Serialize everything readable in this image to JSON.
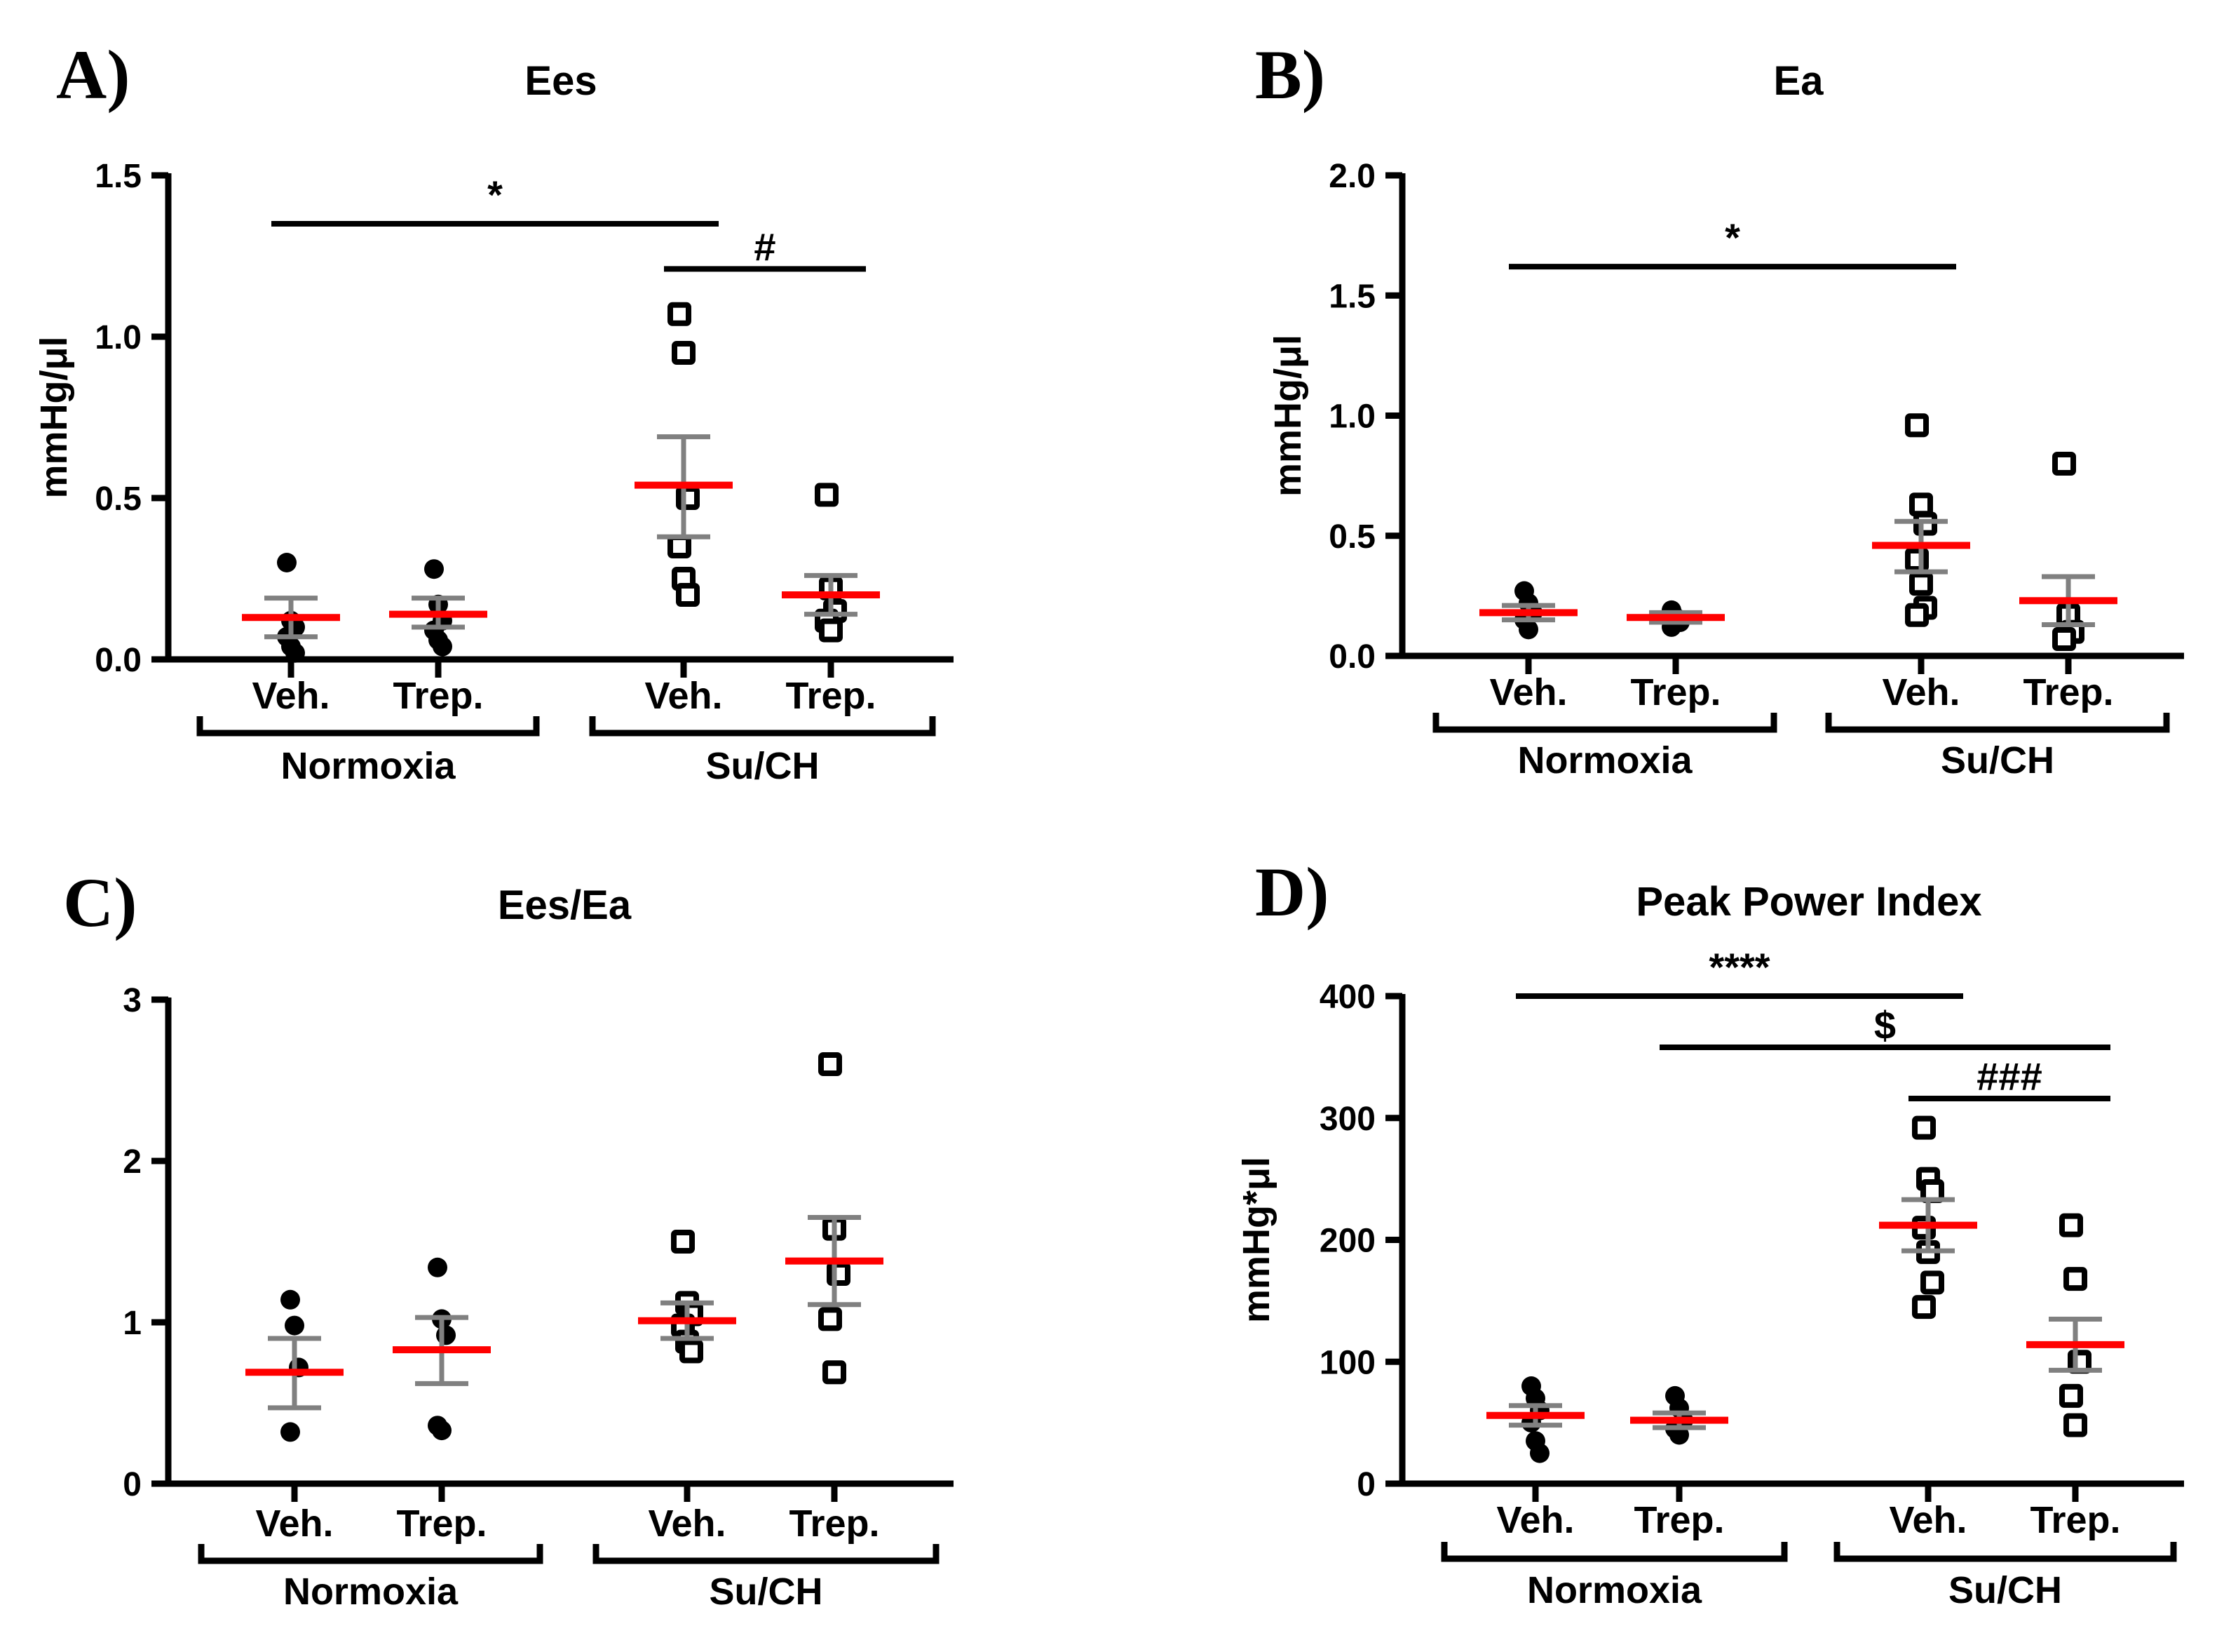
{
  "figure": {
    "groups": [
      "Normoxia",
      "Su/CH"
    ],
    "conditions": [
      "Veh.",
      "Trep.",
      "Veh.",
      "Trep."
    ]
  },
  "chart_data": [
    {
      "panel_label": "A)",
      "type": "scatter",
      "title": "Ees",
      "ylabel": "mmHg/μl",
      "ylim": [
        0,
        1.5
      ],
      "yticks": [
        "0.0",
        "0.5",
        "1.0",
        "1.5"
      ],
      "ytick_values": [
        0,
        0.5,
        1.0,
        1.5
      ],
      "categories": [
        "Veh.",
        "Trep.",
        "Veh.",
        "Trep."
      ],
      "groups": [
        "Normoxia",
        "Su/CH"
      ],
      "series": [
        {
          "name": "Normoxia Veh.",
          "marker": "filled-circle",
          "points": [
            0.3,
            0.12,
            0.1,
            0.07,
            0.04,
            0.02
          ],
          "mean": 0.13,
          "sem": [
            0.07,
            0.19
          ]
        },
        {
          "name": "Normoxia Trep.",
          "marker": "filled-circle",
          "points": [
            0.28,
            0.17,
            0.12,
            0.09,
            0.06,
            0.04
          ],
          "mean": 0.14,
          "sem": [
            0.1,
            0.19
          ]
        },
        {
          "name": "Su/CH Veh.",
          "marker": "open-square",
          "points": [
            1.07,
            0.95,
            0.5,
            0.35,
            0.25,
            0.2
          ],
          "mean": 0.54,
          "sem": [
            0.38,
            0.69
          ]
        },
        {
          "name": "Su/CH Trep.",
          "marker": "open-square",
          "points": [
            0.51,
            0.22,
            0.15,
            0.12,
            0.09
          ],
          "mean": 0.2,
          "sem": [
            0.14,
            0.26
          ]
        }
      ],
      "significance": [
        {
          "label": "*",
          "from": 0,
          "to": 2,
          "y": 1.35
        },
        {
          "label": "#",
          "from": 2,
          "to": 3,
          "y": 1.21
        }
      ]
    },
    {
      "panel_label": "B)",
      "type": "scatter",
      "title": "Ea",
      "ylabel": "mmHg/μl",
      "ylim": [
        0,
        2.0
      ],
      "yticks": [
        "0.0",
        "0.5",
        "1.0",
        "1.5",
        "2.0"
      ],
      "ytick_values": [
        0,
        0.5,
        1.0,
        1.5,
        2.0
      ],
      "categories": [
        "Veh.",
        "Trep.",
        "Veh.",
        "Trep."
      ],
      "groups": [
        "Normoxia",
        "Su/CH"
      ],
      "series": [
        {
          "name": "Normoxia Veh.",
          "marker": "filled-circle",
          "points": [
            0.27,
            0.22,
            0.18,
            0.15,
            0.11
          ],
          "mean": 0.18,
          "sem": [
            0.15,
            0.21
          ]
        },
        {
          "name": "Normoxia Trep.",
          "marker": "filled-circle",
          "points": [
            0.19,
            0.16,
            0.14,
            0.12
          ],
          "mean": 0.16,
          "sem": [
            0.14,
            0.18
          ]
        },
        {
          "name": "Su/CH Veh.",
          "marker": "open-square",
          "points": [
            0.96,
            0.63,
            0.55,
            0.4,
            0.3,
            0.2,
            0.17
          ],
          "mean": 0.46,
          "sem": [
            0.35,
            0.56
          ]
        },
        {
          "name": "Su/CH Trep.",
          "marker": "open-square",
          "points": [
            0.8,
            0.17,
            0.1,
            0.07
          ],
          "mean": 0.23,
          "sem": [
            0.13,
            0.33
          ]
        }
      ],
      "significance": [
        {
          "label": "*",
          "from": 0,
          "to": 2,
          "y": 1.62
        }
      ]
    },
    {
      "panel_label": "C)",
      "type": "scatter",
      "title": "Ees/Ea",
      "ylabel": "",
      "ylim": [
        0,
        3
      ],
      "yticks": [
        "0",
        "1",
        "2",
        "3"
      ],
      "ytick_values": [
        0,
        1,
        2,
        3
      ],
      "categories": [
        "Veh.",
        "Trep.",
        "Veh.",
        "Trep."
      ],
      "groups": [
        "Normoxia",
        "Su/CH"
      ],
      "series": [
        {
          "name": "Normoxia Veh.",
          "marker": "filled-circle",
          "points": [
            1.14,
            0.98,
            0.72,
            0.32
          ],
          "mean": 0.69,
          "sem": [
            0.47,
            0.9
          ]
        },
        {
          "name": "Normoxia Trep.",
          "marker": "filled-circle",
          "points": [
            1.34,
            1.02,
            0.92,
            0.36,
            0.33
          ],
          "mean": 0.83,
          "sem": [
            0.62,
            1.03
          ]
        },
        {
          "name": "Su/CH Veh.",
          "marker": "open-square",
          "points": [
            1.5,
            1.12,
            1.05,
            0.98,
            0.88,
            0.82
          ],
          "mean": 1.01,
          "sem": [
            0.9,
            1.12
          ]
        },
        {
          "name": "Su/CH Trep.",
          "marker": "open-square",
          "points": [
            2.6,
            1.58,
            1.3,
            1.02,
            0.69
          ],
          "mean": 1.38,
          "sem": [
            1.11,
            1.65
          ]
        }
      ],
      "significance": []
    },
    {
      "panel_label": "D)",
      "type": "scatter",
      "title": "Peak Power Index",
      "ylabel": "mmHg*μl",
      "ylim": [
        0,
        400
      ],
      "yticks": [
        "0",
        "100",
        "200",
        "300",
        "400"
      ],
      "ytick_values": [
        0,
        100,
        200,
        300,
        400
      ],
      "categories": [
        "Veh.",
        "Trep.",
        "Veh.",
        "Trep."
      ],
      "groups": [
        "Normoxia",
        "Su/CH"
      ],
      "series": [
        {
          "name": "Normoxia Veh.",
          "marker": "filled-circle",
          "points": [
            80,
            70,
            60,
            50,
            35,
            25
          ],
          "mean": 56,
          "sem": [
            48,
            64
          ]
        },
        {
          "name": "Normoxia Trep.",
          "marker": "filled-circle",
          "points": [
            72,
            62,
            52,
            45,
            40
          ],
          "mean": 52,
          "sem": [
            46,
            58
          ]
        },
        {
          "name": "Su/CH Veh.",
          "marker": "open-square",
          "points": [
            292,
            250,
            240,
            210,
            190,
            165,
            145
          ],
          "mean": 212,
          "sem": [
            191,
            233
          ]
        },
        {
          "name": "Su/CH Trep.",
          "marker": "open-square",
          "points": [
            212,
            168,
            100,
            72,
            48
          ],
          "mean": 114,
          "sem": [
            93,
            135
          ]
        }
      ],
      "significance": [
        {
          "label": "****",
          "from": 0,
          "to": 2,
          "y": 400
        },
        {
          "label": "$",
          "from": 1,
          "to": 3,
          "y": 358
        },
        {
          "label": "###",
          "from": 2,
          "to": 3,
          "y": 316
        }
      ]
    }
  ]
}
